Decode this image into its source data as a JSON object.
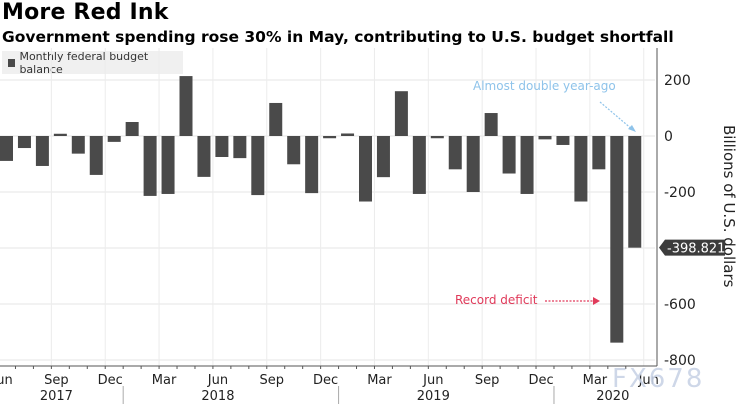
{
  "title": "More Red Ink",
  "subtitle": "Government spending rose 30% in May, contributing to U.S. budget shortfall",
  "watermark": "FX678",
  "chart_data": {
    "type": "bar",
    "title": "More Red Ink",
    "subtitle": "Government spending rose 30% in May, contributing to U.S. budget shortfall",
    "legend": {
      "label": "Monthly federal budget balance",
      "position": "top-left"
    },
    "ylabel": "Billions of U.S. dollars",
    "yaxis_side": "right",
    "ylim": [
      -800,
      280
    ],
    "yticks": [
      200,
      0,
      -200,
      -400,
      -600,
      -800
    ],
    "ytick_labels": [
      "200",
      "0",
      "-200",
      "",
      "-600",
      "-800"
    ],
    "grid": true,
    "bar_color": "#4a4a4a",
    "months": [
      "Jun 2017",
      "Jul 2017",
      "Aug 2017",
      "Sep 2017",
      "Oct 2017",
      "Nov 2017",
      "Dec 2017",
      "Jan 2018",
      "Feb 2018",
      "Mar 2018",
      "Apr 2018",
      "May 2018",
      "Jun 2018",
      "Jul 2018",
      "Aug 2018",
      "Sep 2018",
      "Oct 2018",
      "Nov 2018",
      "Dec 2018",
      "Jan 2019",
      "Feb 2019",
      "Mar 2019",
      "Apr 2019",
      "May 2019",
      "Jun 2019",
      "Jul 2019",
      "Aug 2019",
      "Sep 2019",
      "Oct 2019",
      "Nov 2019",
      "Dec 2019",
      "Jan 2020",
      "Feb 2020",
      "Mar 2020",
      "Apr 2020",
      "May 2020"
    ],
    "values": [
      -89,
      -43,
      -107,
      8,
      -63,
      -139,
      -21,
      50,
      -214,
      -207,
      214,
      -146,
      -75,
      -79,
      -211,
      118,
      -101,
      -204,
      -8,
      9,
      -234,
      -147,
      160,
      -207,
      -8,
      -119,
      -200,
      82,
      -134,
      -207,
      -12,
      -32,
      -234,
      -119,
      -738,
      -398.821
    ],
    "xtick_labels": [
      {
        "label": "Jun",
        "index": 0
      },
      {
        "label": "Sep",
        "index": 3
      },
      {
        "label": "Dec",
        "index": 6
      },
      {
        "label": "Mar",
        "index": 9
      },
      {
        "label": "Jun",
        "index": 12
      },
      {
        "label": "Sep",
        "index": 15
      },
      {
        "label": "Dec",
        "index": 18
      },
      {
        "label": "Mar",
        "index": 21
      },
      {
        "label": "Jun",
        "index": 24
      },
      {
        "label": "Sep",
        "index": 27
      },
      {
        "label": "Dec",
        "index": 30
      },
      {
        "label": "Mar",
        "index": 33
      },
      {
        "label": "Jun",
        "index": 36
      }
    ],
    "year_labels": [
      {
        "label": "2017",
        "index": 3
      },
      {
        "label": "2018",
        "index": 12
      },
      {
        "label": "2019",
        "index": 24
      },
      {
        "label": "2020",
        "index": 34
      }
    ],
    "last_value_label": "-398.821",
    "annotations": [
      {
        "text": "Almost double year-ago",
        "color": "#8ec3ea",
        "target_index": 35
      },
      {
        "text": "Record deficit",
        "color": "#e03a5a",
        "target_index": 34
      }
    ]
  }
}
